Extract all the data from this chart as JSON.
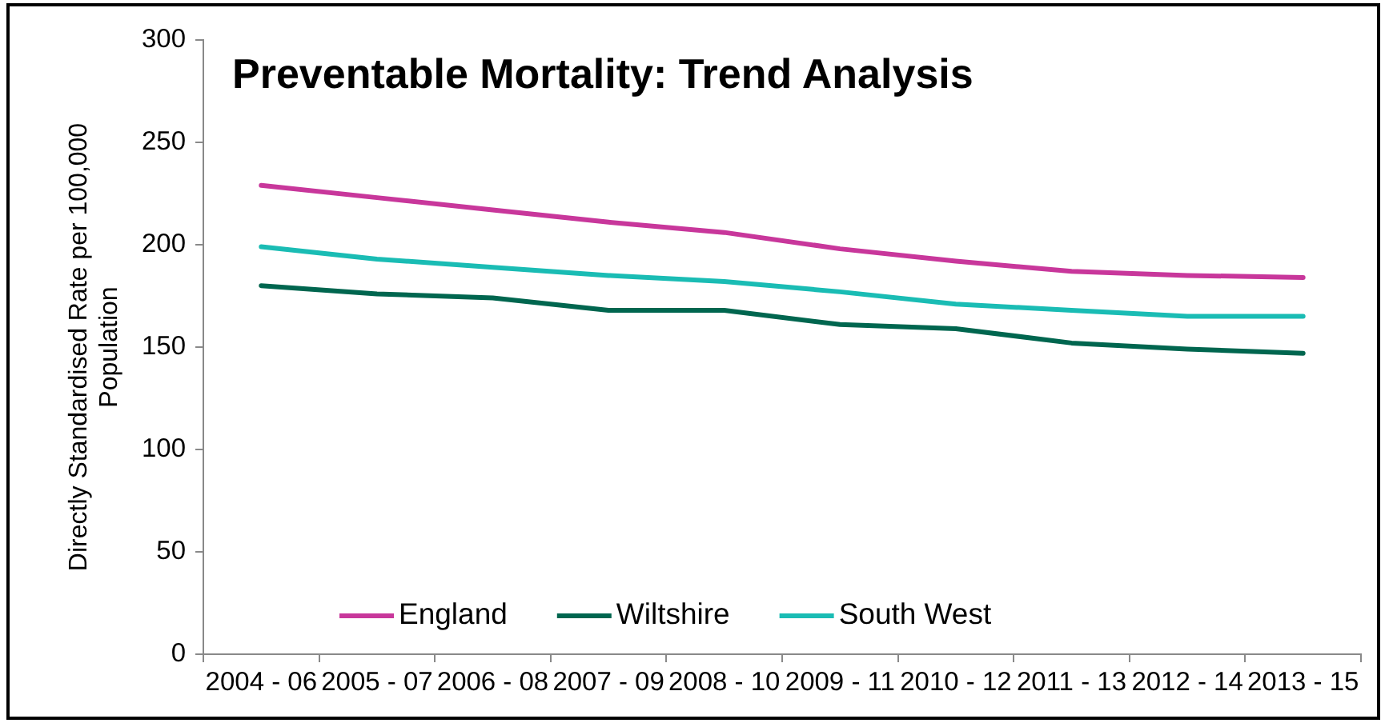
{
  "chart_data": {
    "type": "line",
    "title": "Preventable Mortality: Trend Analysis",
    "ylabel": "Directly Standardised Rate per 100,000 Population",
    "categories": [
      "2004 - 06",
      "2005 - 07",
      "2006 - 08",
      "2007 - 09",
      "2008 - 10",
      "2009 - 11",
      "2010 - 12",
      "2011 - 13",
      "2012 - 14",
      "2013 - 15"
    ],
    "series": [
      {
        "name": "England",
        "color": "#c8379b",
        "values": [
          229,
          223,
          217,
          211,
          206,
          198,
          192,
          187,
          185,
          184
        ]
      },
      {
        "name": "Wiltshire",
        "color": "#00664f",
        "values": [
          180,
          176,
          174,
          168,
          168,
          161,
          159,
          152,
          149,
          147
        ]
      },
      {
        "name": "South West",
        "color": "#1abcb4",
        "values": [
          199,
          193,
          189,
          185,
          182,
          177,
          171,
          168,
          165,
          165
        ]
      }
    ],
    "ylim": [
      0,
      300
    ],
    "yticks": [
      0,
      50,
      100,
      150,
      200,
      250,
      300
    ],
    "legend": "bottom left"
  }
}
